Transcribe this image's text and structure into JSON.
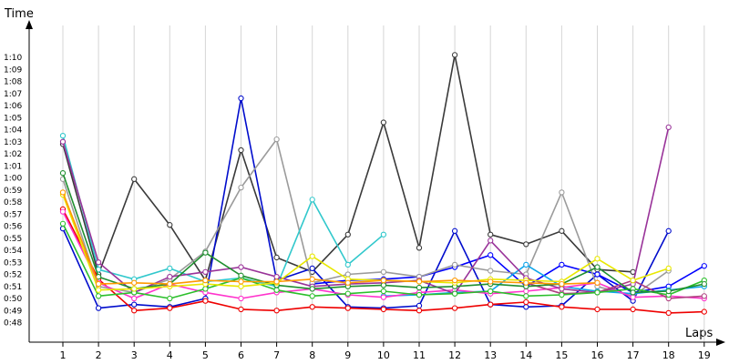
{
  "chart_data": {
    "type": "line",
    "ylabel": "Time",
    "xlabel": "Laps",
    "x": [
      1,
      2,
      3,
      4,
      5,
      6,
      7,
      8,
      9,
      10,
      11,
      12,
      13,
      14,
      15,
      16,
      17,
      18,
      19
    ],
    "y_ticks": [
      "0:48",
      "0:49",
      "0:50",
      "0:51",
      "0:52",
      "0:53",
      "0:54",
      "0:55",
      "0:56",
      "0:57",
      "0:58",
      "0:59",
      "1:00",
      "1:01",
      "1:02",
      "1:03",
      "1:04",
      "1:05",
      "1:06",
      "1:07",
      "1:08",
      "1:09",
      "1:10"
    ],
    "ylim_seconds": [
      47,
      71
    ],
    "grid": "vertical",
    "series": [
      {
        "color": "#3a3a3a",
        "values": [
          62.8,
          52.0,
          59.9,
          56.1,
          51.5,
          62.3,
          53.4,
          52.2,
          55.3,
          64.6,
          54.2,
          70.2,
          55.3,
          54.5,
          55.6,
          52.4,
          52.2,
          null,
          null
        ]
      },
      {
        "color": "#000ccc",
        "values": [
          55.8,
          49.2,
          49.5,
          49.3,
          50.0,
          66.6,
          51.5,
          52.5,
          49.3,
          49.2,
          49.4,
          55.6,
          49.5,
          49.3,
          49.4,
          52.0,
          49.8,
          55.6,
          null
        ]
      },
      {
        "color": "#0000ff",
        "values": [
          null,
          null,
          null,
          null,
          null,
          null,
          null,
          51.2,
          51.5,
          51.6,
          51.8,
          52.6,
          53.6,
          51.0,
          52.8,
          52.0,
          50.5,
          51.0,
          52.7
        ]
      },
      {
        "color": "#ee0000",
        "values": [
          57.4,
          51.6,
          49.0,
          49.2,
          49.8,
          49.1,
          49.0,
          49.3,
          49.2,
          49.1,
          49.0,
          49.2,
          49.5,
          49.7,
          49.3,
          49.1,
          49.1,
          48.8,
          48.9
        ]
      },
      {
        "color": "#9b9b9b",
        "values": [
          59.9,
          51.0,
          50.5,
          51.6,
          53.9,
          59.2,
          63.2,
          51.3,
          52.0,
          52.2,
          51.8,
          52.8,
          52.3,
          52.0,
          58.8,
          51.0,
          50.2,
          52.3,
          null
        ]
      },
      {
        "color": "#31c8cc",
        "values": [
          63.5,
          52.4,
          51.6,
          52.5,
          51.4,
          51.7,
          51.0,
          58.2,
          52.8,
          55.3,
          null,
          null,
          null,
          null,
          null,
          null,
          null,
          null,
          null
        ]
      },
      {
        "color": "#0ea5ea",
        "values": [
          null,
          null,
          null,
          null,
          null,
          null,
          null,
          null,
          null,
          50.2,
          50.3,
          50.5,
          50.6,
          52.8,
          51.0,
          50.6,
          50.4,
          50.7,
          51.0
        ]
      },
      {
        "color": "#ff33cc",
        "values": [
          57.2,
          51.3,
          50.0,
          51.2,
          50.5,
          50.0,
          50.5,
          50.8,
          50.3,
          50.1,
          50.5,
          50.7,
          50.4,
          50.6,
          50.9,
          51.3,
          50.1,
          50.2,
          50.0
        ]
      },
      {
        "color": "#993399",
        "values": [
          63.0,
          53.0,
          50.5,
          51.8,
          52.2,
          52.6,
          51.8,
          51.0,
          51.2,
          51.3,
          51.5,
          50.4,
          54.8,
          51.7,
          50.8,
          50.5,
          51.2,
          64.2,
          null
        ]
      },
      {
        "color": "#b04080",
        "values": [
          null,
          null,
          null,
          null,
          null,
          null,
          null,
          null,
          null,
          null,
          null,
          null,
          null,
          51.3,
          50.4,
          50.5,
          51.5,
          50.0,
          50.2
        ]
      },
      {
        "color": "#2bbf2b",
        "values": [
          56.2,
          50.2,
          50.5,
          50.0,
          50.8,
          51.7,
          50.7,
          50.2,
          50.4,
          50.6,
          50.3,
          50.4,
          50.6,
          50.2,
          50.3,
          50.5,
          50.8,
          50.3,
          51.5
        ]
      },
      {
        "color": "#1f8f2f",
        "values": [
          60.4,
          51.8,
          50.8,
          51.2,
          53.8,
          51.9,
          51.1,
          50.8,
          51.0,
          51.1,
          50.9,
          51.0,
          51.2,
          51.0,
          51.2,
          52.6,
          50.5,
          50.6,
          51.2
        ]
      },
      {
        "color": "#e8e800",
        "values": [
          58.6,
          50.7,
          50.8,
          51.0,
          51.2,
          51.0,
          51.3,
          53.5,
          51.6,
          51.5,
          51.4,
          51.3,
          51.6,
          51.5,
          51.4,
          53.3,
          51.5,
          52.5,
          null
        ]
      },
      {
        "color": "#ff9900",
        "values": [
          58.8,
          51.2,
          51.3,
          51.2,
          51.5,
          51.4,
          51.4,
          51.6,
          51.3,
          51.5,
          51.4,
          51.5,
          51.4,
          51.3,
          51.2,
          51.3,
          null,
          null,
          null
        ]
      }
    ]
  }
}
